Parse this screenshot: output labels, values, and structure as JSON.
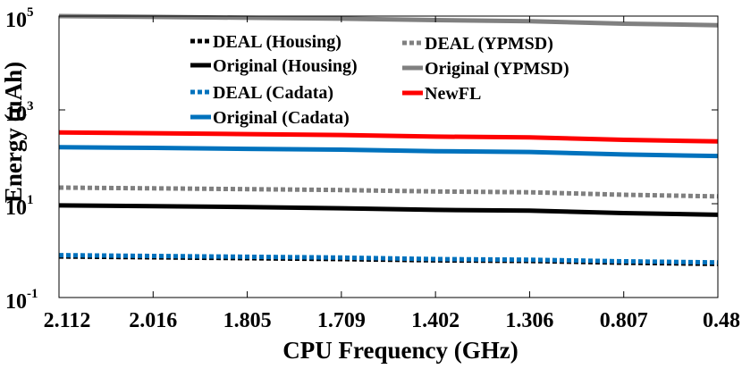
{
  "chart_data": {
    "type": "line",
    "title": "",
    "xlabel": "CPU Frequency (GHz)",
    "ylabel": "Energy (uAh)",
    "x_categories": [
      "2.112",
      "2.016",
      "1.805",
      "1.709",
      "1.402",
      "1.306",
      "0.807",
      "0.48"
    ],
    "y_scale": "log",
    "ylim": [
      0.1,
      100000
    ],
    "y_ticks": [
      {
        "base": "10",
        "exp": "-1",
        "value": 0.1
      },
      {
        "base": "10",
        "exp": "1",
        "value": 10
      },
      {
        "base": "10",
        "exp": "3",
        "value": 1000
      },
      {
        "base": "10",
        "exp": "5",
        "value": 100000
      }
    ],
    "grid": false,
    "legend_placement": "top",
    "series": [
      {
        "name": "DEAL (Housing)",
        "color": "#000000",
        "dash": "dotted",
        "values": [
          0.75,
          0.72,
          0.69,
          0.66,
          0.62,
          0.6,
          0.55,
          0.52
        ]
      },
      {
        "name": "Original (Housing)",
        "color": "#000000",
        "dash": "solid",
        "values": [
          9.2,
          8.9,
          8.5,
          8.0,
          7.4,
          7.1,
          6.3,
          5.8
        ]
      },
      {
        "name": "DEAL (Cadata)",
        "color": "#0072BD",
        "dash": "dotted",
        "values": [
          0.8,
          0.77,
          0.74,
          0.71,
          0.66,
          0.64,
          0.59,
          0.56
        ]
      },
      {
        "name": "Original (Cadata)",
        "color": "#0072BD",
        "dash": "solid",
        "values": [
          160,
          155,
          148,
          142,
          132,
          127,
          112,
          104
        ]
      },
      {
        "name": "DEAL (YPMSD)",
        "color": "#808080",
        "dash": "dotted",
        "values": [
          22,
          21.3,
          20.4,
          19.6,
          18.2,
          17.5,
          15.5,
          14.3
        ]
      },
      {
        "name": "Original (YPMSD)",
        "color": "#808080",
        "dash": "solid",
        "values": [
          100000,
          96000,
          92000,
          88000,
          82000,
          78000,
          69000,
          64000
        ]
      },
      {
        "name": "NewFL",
        "color": "#FF0000",
        "dash": "solid",
        "values": [
          330,
          318,
          304,
          291,
          270,
          260,
          230,
          213
        ]
      }
    ]
  }
}
